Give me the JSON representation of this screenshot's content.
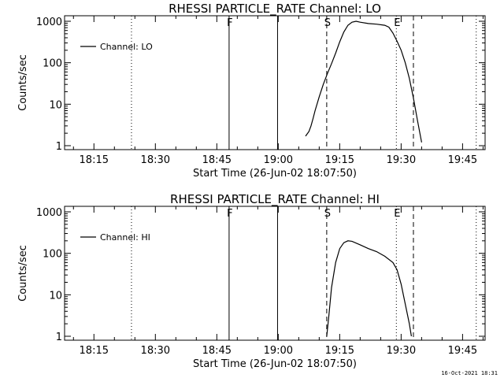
{
  "chart_data": [
    {
      "type": "line",
      "title": "RHESSI PARTICLE_RATE Channel: LO",
      "xlabel": "Start Time (26-Jun-02 18:07:50)",
      "ylabel": "Counts/sec",
      "yscale": "log",
      "ylim": [
        1,
        1000
      ],
      "xlim": [
        "18:07:50",
        "19:50:30"
      ],
      "x_tick_labels": [
        "18:15",
        "18:30",
        "18:45",
        "19:00",
        "19:15",
        "19:30",
        "19:45"
      ],
      "y_tick_labels": [
        "1",
        "10",
        "100",
        "1000"
      ],
      "legend": {
        "position": "top-left",
        "entries": [
          "Channel: LO"
        ]
      },
      "series": [
        {
          "name": "Channel: LO",
          "x": [
            "19:06:40",
            "19:07:30",
            "19:08:00",
            "19:08:30",
            "19:09:00",
            "19:10:00",
            "19:11:00",
            "19:12:00",
            "19:13:00",
            "19:14:00",
            "19:15:00",
            "19:16:00",
            "19:17:00",
            "19:18:00",
            "19:19:00",
            "19:20:00",
            "19:22:00",
            "19:24:00",
            "19:26:00",
            "19:27:00",
            "19:28:00",
            "19:29:00",
            "19:30:00",
            "19:31:00",
            "19:32:00",
            "19:33:00",
            "19:34:00",
            "19:35:00"
          ],
          "values": [
            1.7,
            2.2,
            3,
            4.5,
            7,
            15,
            30,
            55,
            95,
            170,
            320,
            550,
            800,
            950,
            1000,
            950,
            880,
            850,
            800,
            720,
            520,
            330,
            200,
            100,
            42,
            14,
            4,
            1.2
          ]
        }
      ],
      "vlines": [
        {
          "x": "18:24:10",
          "style": "dotted",
          "label": ""
        },
        {
          "x": "18:48:00",
          "style": "solid",
          "label": "F"
        },
        {
          "x": "18:59:50",
          "style": "solid",
          "label": ""
        },
        {
          "x": "19:11:50",
          "style": "dashed",
          "label": "S"
        },
        {
          "x": "19:28:50",
          "style": "dotted",
          "label": "E"
        },
        {
          "x": "19:33:00",
          "style": "dashed",
          "label": ""
        },
        {
          "x": "19:48:20",
          "style": "dotted",
          "label": ""
        }
      ]
    },
    {
      "type": "line",
      "title": "RHESSI PARTICLE_RATE Channel: HI",
      "xlabel": "Start Time (26-Jun-02 18:07:50)",
      "ylabel": "Counts/sec",
      "yscale": "log",
      "ylim": [
        1,
        1000
      ],
      "xlim": [
        "18:07:50",
        "19:50:30"
      ],
      "x_tick_labels": [
        "18:15",
        "18:30",
        "18:45",
        "19:00",
        "19:15",
        "19:30",
        "19:45"
      ],
      "y_tick_labels": [
        "1",
        "10",
        "100",
        "1000"
      ],
      "legend": {
        "position": "top-left",
        "entries": [
          "Channel: HI"
        ]
      },
      "series": [
        {
          "name": "Channel: HI",
          "x": [
            "19:11:50",
            "19:12:20",
            "19:13:00",
            "19:14:00",
            "19:15:00",
            "19:16:00",
            "19:17:00",
            "19:18:00",
            "19:20:00",
            "19:22:00",
            "19:24:00",
            "19:26:00",
            "19:28:00",
            "19:29:00",
            "19:30:00",
            "19:31:00",
            "19:32:00",
            "19:32:30"
          ],
          "values": [
            1,
            3,
            15,
            60,
            130,
            180,
            200,
            195,
            160,
            130,
            110,
            85,
            60,
            40,
            18,
            6,
            2,
            1
          ]
        }
      ],
      "vlines": [
        {
          "x": "18:24:10",
          "style": "dotted",
          "label": ""
        },
        {
          "x": "18:48:00",
          "style": "solid",
          "label": "F"
        },
        {
          "x": "18:59:50",
          "style": "solid",
          "label": ""
        },
        {
          "x": "19:11:50",
          "style": "dashed",
          "label": "S"
        },
        {
          "x": "19:28:50",
          "style": "dotted",
          "label": "E"
        },
        {
          "x": "19:33:00",
          "style": "dashed",
          "label": ""
        },
        {
          "x": "19:48:20",
          "style": "dotted",
          "label": ""
        }
      ]
    }
  ],
  "footer": "16-Oct-2021 18:31"
}
